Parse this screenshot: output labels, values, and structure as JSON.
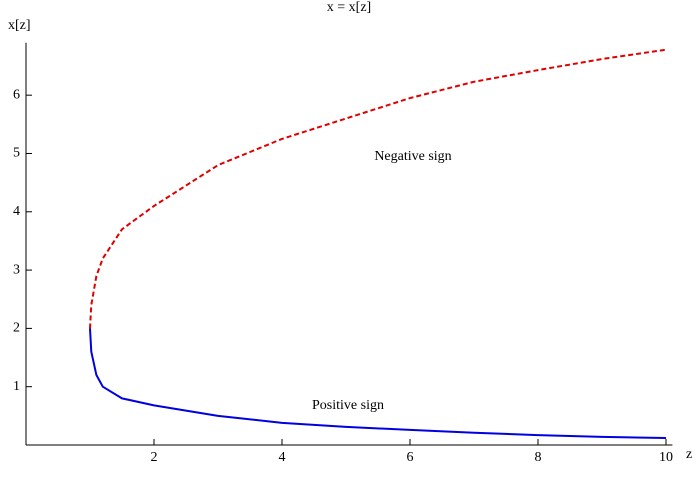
{
  "chart_data": {
    "type": "line",
    "title": "x = x[z]",
    "x_label": "z",
    "y_label": "x[z]",
    "series": [
      {
        "name": "Negative sign",
        "color": "#e00000",
        "dashed": true,
        "x": [
          1,
          1.02,
          1.1,
          1.2,
          1.5,
          2,
          3,
          4,
          5,
          6,
          7,
          8,
          9,
          10
        ],
        "values": [
          2,
          2.4,
          2.9,
          3.2,
          3.7,
          4.1,
          4.8,
          5.25,
          5.6,
          5.95,
          6.23,
          6.43,
          6.62,
          6.78
        ]
      },
      {
        "name": "Positive sign",
        "color": "#0000e0",
        "dashed": false,
        "x": [
          1,
          1.02,
          1.1,
          1.2,
          1.5,
          2,
          3,
          4,
          5,
          6,
          7,
          8,
          9,
          10
        ],
        "values": [
          2,
          1.6,
          1.2,
          1.0,
          0.8,
          0.68,
          0.5,
          0.38,
          0.31,
          0.26,
          0.21,
          0.17,
          0.14,
          0.12
        ]
      }
    ],
    "annotations": [
      "Negative sign",
      "Positive sign"
    ],
    "xlim": [
      0,
      10.1
    ],
    "ylim": [
      0,
      6.9
    ],
    "xticks": [
      2,
      4,
      6,
      8,
      10
    ],
    "yticks": [
      1,
      2,
      3,
      4,
      5,
      6
    ],
    "grid": false
  }
}
